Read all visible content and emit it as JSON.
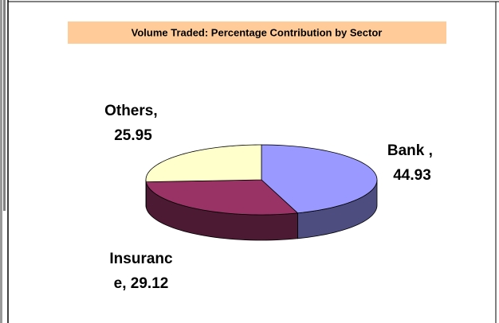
{
  "chart_data": {
    "type": "pie3d",
    "title": "Volume Traded: Percentage Contribution by Sector",
    "categories": [
      "Bank",
      "Insurance",
      "Others"
    ],
    "values": [
      44.93,
      29.12,
      25.95
    ],
    "value_labels": [
      "Bank , 44.93",
      "Insurance, 29.12",
      "Others, 25.95"
    ],
    "colors": [
      "#9999ff",
      "#993366",
      "#ffffcc"
    ]
  }
}
